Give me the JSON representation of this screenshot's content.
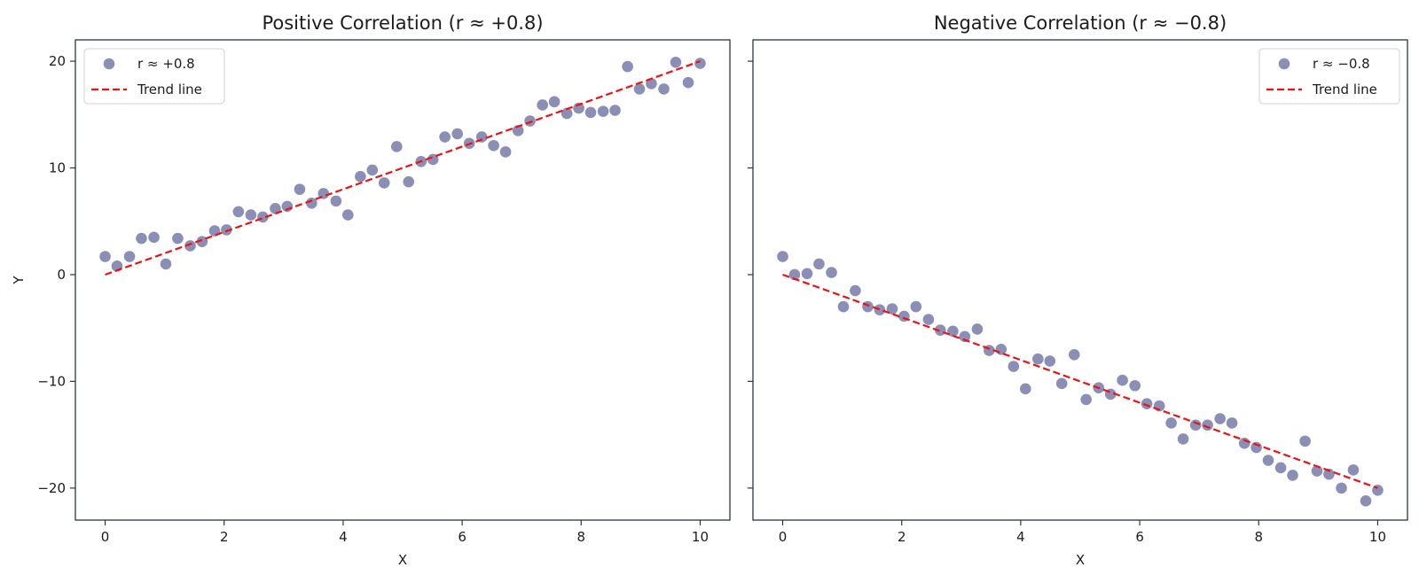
{
  "chart_data": [
    {
      "type": "scatter",
      "title": "Positive Correlation (r ≈ +0.8)",
      "xlabel": "X",
      "ylabel": "Y",
      "xlim": [
        -0.5,
        10.5
      ],
      "ylim": [
        -23,
        22
      ],
      "xticks": [
        0,
        2,
        4,
        6,
        8,
        10
      ],
      "xtick_labels": [
        "0",
        "2",
        "4",
        "6",
        "8",
        "10"
      ],
      "yticks": [
        -20,
        -10,
        0,
        10,
        20
      ],
      "ytick_labels": [
        "−20",
        "−10",
        "0",
        "10",
        "20"
      ],
      "show_yticklabels": true,
      "legend_position": "upper left",
      "grid": false,
      "series": [
        {
          "name": "r ≈ +0.8",
          "kind": "scatter",
          "color": "#7b7fab",
          "x": [
            0,
            0.2,
            0.41,
            0.61,
            0.82,
            1.02,
            1.22,
            1.43,
            1.63,
            1.84,
            2.04,
            2.24,
            2.45,
            2.65,
            2.86,
            3.06,
            3.27,
            3.47,
            3.67,
            3.88,
            4.08,
            4.29,
            4.49,
            4.69,
            4.9,
            5.1,
            5.31,
            5.51,
            5.71,
            5.92,
            6.12,
            6.33,
            6.53,
            6.73,
            6.94,
            7.14,
            7.35,
            7.55,
            7.76,
            7.96,
            8.16,
            8.37,
            8.57,
            8.78,
            8.98,
            9.18,
            9.39,
            9.59,
            9.8,
            10
          ],
          "y": [
            1.7,
            0.8,
            1.7,
            3.4,
            3.5,
            1.0,
            3.4,
            2.7,
            3.1,
            4.1,
            4.2,
            5.9,
            5.6,
            5.4,
            6.2,
            6.4,
            8.0,
            6.7,
            7.6,
            6.9,
            5.6,
            9.2,
            9.8,
            8.6,
            12.0,
            8.7,
            10.6,
            10.8,
            12.9,
            13.2,
            12.3,
            12.9,
            12.1,
            11.5,
            13.5,
            14.4,
            15.9,
            16.2,
            15.1,
            15.6,
            15.2,
            15.3,
            15.4,
            19.5,
            17.4,
            17.9,
            17.4,
            19.9,
            18.0,
            19.8
          ]
        },
        {
          "name": "Trend line",
          "kind": "line",
          "color": "#ee1111",
          "dashed": true,
          "x": [
            0,
            10
          ],
          "y": [
            0,
            20
          ]
        }
      ]
    },
    {
      "type": "scatter",
      "title": "Negative Correlation (r ≈ −0.8)",
      "xlabel": "X",
      "ylabel": "",
      "xlim": [
        -0.5,
        10.5
      ],
      "ylim": [
        -23,
        22
      ],
      "xticks": [
        0,
        2,
        4,
        6,
        8,
        10
      ],
      "xtick_labels": [
        "0",
        "2",
        "4",
        "6",
        "8",
        "10"
      ],
      "yticks": [
        -20,
        -10,
        0,
        10,
        20
      ],
      "ytick_labels": [
        "",
        "",
        "",
        "",
        ""
      ],
      "show_yticklabels": false,
      "legend_position": "upper right",
      "grid": false,
      "series": [
        {
          "name": "r ≈ −0.8",
          "kind": "scatter",
          "color": "#7b7fab",
          "x": [
            0,
            0.2,
            0.41,
            0.61,
            0.82,
            1.02,
            1.22,
            1.43,
            1.63,
            1.84,
            2.04,
            2.24,
            2.45,
            2.65,
            2.86,
            3.06,
            3.27,
            3.47,
            3.67,
            3.88,
            4.08,
            4.29,
            4.49,
            4.69,
            4.9,
            5.1,
            5.31,
            5.51,
            5.71,
            5.92,
            6.12,
            6.33,
            6.53,
            6.73,
            6.94,
            7.14,
            7.35,
            7.55,
            7.76,
            7.96,
            8.16,
            8.37,
            8.57,
            8.78,
            8.98,
            9.18,
            9.39,
            9.59,
            9.8,
            10
          ],
          "y": [
            1.7,
            0.0,
            0.1,
            1.0,
            0.2,
            -3.0,
            -1.5,
            -3.0,
            -3.3,
            -3.2,
            -3.9,
            -3.0,
            -4.2,
            -5.2,
            -5.3,
            -5.8,
            -5.1,
            -7.1,
            -7.0,
            -8.6,
            -10.7,
            -7.9,
            -8.1,
            -10.2,
            -7.5,
            -11.7,
            -10.6,
            -11.2,
            -9.9,
            -10.4,
            -12.1,
            -12.3,
            -13.9,
            -15.4,
            -14.1,
            -14.1,
            -13.5,
            -13.9,
            -15.8,
            -16.2,
            -17.4,
            -18.1,
            -18.8,
            -15.6,
            -18.4,
            -18.7,
            -20.0,
            -18.3,
            -21.2,
            -20.2
          ]
        },
        {
          "name": "Trend line",
          "kind": "line",
          "color": "#ee1111",
          "dashed": true,
          "x": [
            0,
            10
          ],
          "y": [
            0,
            -20
          ]
        }
      ]
    }
  ]
}
